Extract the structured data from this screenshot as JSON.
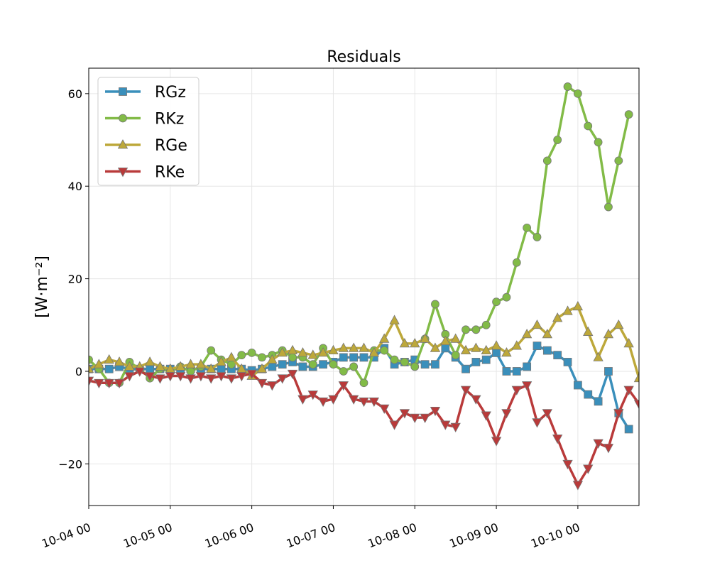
{
  "chart_data": {
    "type": "line",
    "title": "Residuals",
    "xlabel": "",
    "ylabel": "[W·m⁻²]",
    "x_tick_labels": [
      "10-04 00",
      "10-05 00",
      "10-06 00",
      "10-07 00",
      "10-08 00",
      "10-09 00",
      "10-10 00"
    ],
    "y_ticks": [
      -20,
      0,
      20,
      40,
      60
    ],
    "y_tick_labels": [
      "−20",
      "0",
      "20",
      "40",
      "60"
    ],
    "xlim_days": [
      0,
      6.75
    ],
    "ylim": [
      -29,
      65.5
    ],
    "grid": true,
    "legend_position": "top-left",
    "series": [
      {
        "name": "RGz",
        "color": "#3a8fbb",
        "marker": "square",
        "values": [
          0.5,
          0.5,
          0.5,
          1,
          0.5,
          0.5,
          0.5,
          0.5,
          0.5,
          0.5,
          0.5,
          0.5,
          0.5,
          0.5,
          0.5,
          0.5,
          0.2,
          0.5,
          1,
          1.5,
          2,
          1,
          1,
          1.5,
          2,
          3,
          3,
          3,
          3,
          5,
          1.5,
          2,
          2.5,
          1.5,
          1.5,
          5,
          3,
          0.5,
          2,
          2.5,
          4,
          0,
          0,
          1,
          5.5,
          4.5,
          3.5,
          2,
          -3,
          -5,
          -6.5,
          0,
          -9,
          -12.5
        ]
      },
      {
        "name": "RKz",
        "color": "#82bb47",
        "marker": "circle",
        "values": [
          2.5,
          0.5,
          -2.5,
          -2.5,
          2,
          0.5,
          -1.5,
          0.5,
          0,
          1,
          0,
          1,
          4.5,
          2.5,
          1.5,
          3.5,
          4,
          3,
          3.5,
          4.5,
          3,
          3,
          1.5,
          5,
          1.5,
          0,
          1,
          -2.5,
          4.5,
          4.5,
          2.5,
          2,
          1,
          7,
          14.5,
          8,
          3.5,
          9,
          9,
          10,
          15,
          16,
          23.5,
          31,
          29,
          45.5,
          50,
          61.5,
          60,
          53,
          49.5,
          35.5,
          45.5,
          55.5
        ]
      },
      {
        "name": "RGe",
        "color": "#bda83a",
        "marker": "triangle-up",
        "values": [
          0.5,
          1.5,
          2.5,
          2,
          1,
          1,
          2,
          1,
          0.5,
          1,
          1.5,
          1.5,
          0.5,
          2,
          3,
          0.5,
          -1,
          0.5,
          2.5,
          4,
          4.5,
          4,
          3.5,
          4,
          4.5,
          5,
          5,
          5,
          4,
          7,
          11,
          6,
          6,
          7,
          5,
          6.5,
          7,
          4.5,
          5,
          4.5,
          5.5,
          4,
          5.5,
          8,
          10,
          8,
          11.5,
          13,
          14,
          8.5,
          3,
          8,
          10,
          6,
          -1.5
        ]
      },
      {
        "name": "RKe",
        "color": "#b93a3a",
        "marker": "triangle-down",
        "values": [
          -2,
          -2.5,
          -2.5,
          -2.5,
          -1,
          0,
          -1,
          -1.5,
          -1,
          -1,
          -1.5,
          -1,
          -1.5,
          -1,
          -1.5,
          -1,
          -0.5,
          -2.5,
          -3,
          -1.5,
          -0.5,
          -6,
          -5,
          -6.5,
          -6,
          -3,
          -6,
          -6.5,
          -6.5,
          -8,
          -11.5,
          -9,
          -10,
          -10,
          -8.5,
          -11.5,
          -12,
          -4,
          -6,
          -9.5,
          -15,
          -9,
          -4,
          -3,
          -11,
          -9,
          -14.5,
          -20,
          -24.5,
          -21,
          -15.5,
          -16.5,
          -9,
          -4,
          -7
        ]
      }
    ]
  }
}
